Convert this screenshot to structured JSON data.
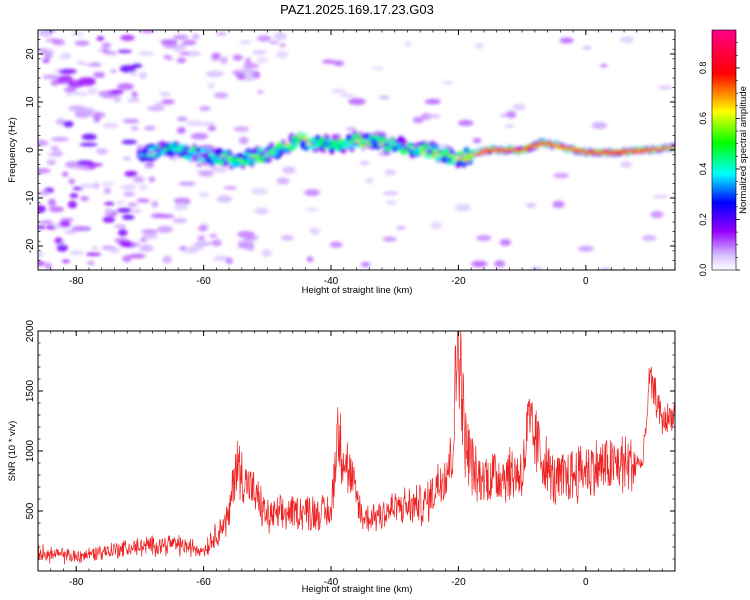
{
  "title": "PAZ1.2025.169.17.23.G03",
  "colorbar": {
    "label": "Normalized spectral amplitude",
    "ticks": [
      "0.0",
      "0.2",
      "0.4",
      "0.6",
      "0.8"
    ],
    "tick_values": [
      0.0,
      0.2,
      0.4,
      0.6,
      0.8
    ],
    "range": [
      0,
      0.95
    ],
    "colors": [
      "#ffffff",
      "#9900ff",
      "#0000ff",
      "#00ffff",
      "#00ff00",
      "#ffff00",
      "#ff0000",
      "#ff0088"
    ]
  },
  "chart_data": [
    {
      "type": "heatmap",
      "xlabel": "Height of straight line (km)",
      "ylabel": "Frequency (Hz)",
      "xlim": [
        -86,
        14
      ],
      "ylim": [
        -25,
        25
      ],
      "xticks": [
        -80,
        -60,
        -40,
        -20,
        0
      ],
      "yticks": [
        -20,
        -10,
        0,
        10,
        20
      ],
      "ridge": {
        "x": [
          -70,
          -65,
          -60,
          -55,
          -50,
          -45,
          -40,
          -35,
          -30,
          -25,
          -20,
          -18,
          -15,
          -10,
          -7,
          -5,
          0,
          5,
          10,
          14
        ],
        "frequency": [
          -1,
          0,
          -1,
          -2,
          -1,
          2,
          1,
          2,
          1,
          0,
          -2,
          -1,
          0,
          0,
          1.5,
          1,
          -0.5,
          -0.5,
          0,
          0.5
        ],
        "amplitude": [
          0.35,
          0.45,
          0.4,
          0.5,
          0.45,
          0.55,
          0.45,
          0.5,
          0.45,
          0.5,
          0.55,
          0.65,
          0.85,
          0.9,
          0.85,
          0.8,
          0.85,
          0.9,
          0.85,
          0.7
        ]
      }
    },
    {
      "type": "line",
      "xlabel": "Height of straight line (km)",
      "ylabel": "SNR (10 * v/v)",
      "xlim": [
        -86,
        14
      ],
      "ylim": [
        0,
        2000
      ],
      "xticks": [
        -80,
        -60,
        -40,
        -20,
        0
      ],
      "yticks": [
        500,
        1000,
        1500,
        2000
      ],
      "color": "#ee2222",
      "series": [
        {
          "x": [
            -86,
            -80,
            -75,
            -70,
            -65,
            -60,
            -56,
            -55,
            -50,
            -45,
            -40,
            -39,
            -35,
            -30,
            -25,
            -21,
            -20,
            -19,
            -17,
            -15,
            -10,
            -9,
            -5,
            0,
            5,
            9,
            10,
            11,
            12,
            14
          ],
          "y": [
            150,
            120,
            170,
            200,
            230,
            170,
            450,
            900,
            450,
            500,
            480,
            1150,
            430,
            520,
            560,
            950,
            2000,
            1100,
            750,
            800,
            820,
            1200,
            740,
            850,
            880,
            900,
            1600,
            1450,
            1250,
            1300
          ]
        }
      ]
    }
  ]
}
